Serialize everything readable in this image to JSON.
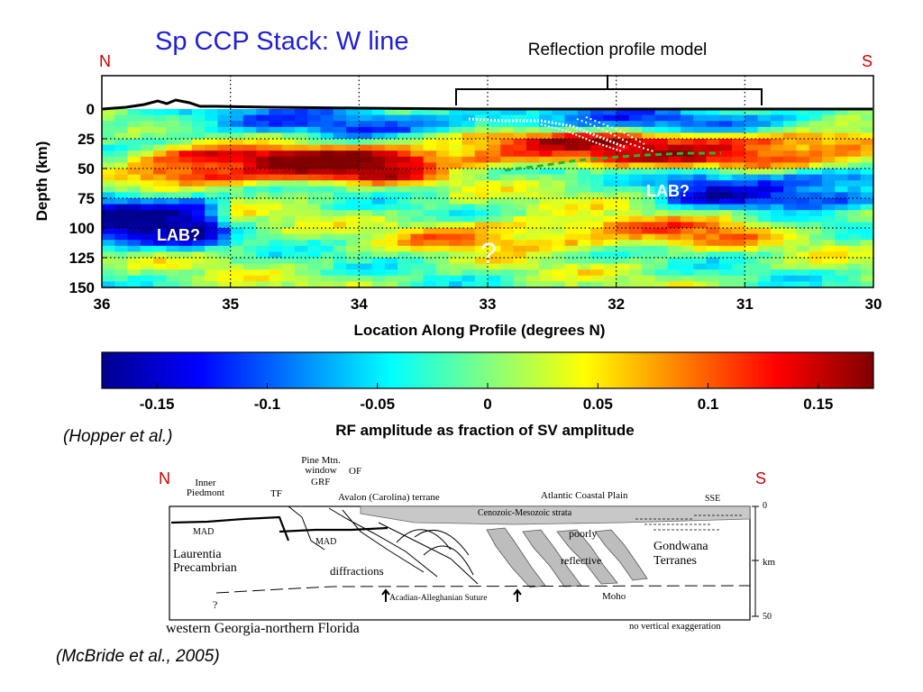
{
  "slide": {
    "title": "Sp CCP Stack: W line",
    "title_color": "#1f1fd6",
    "dir_color": "#d00000"
  },
  "top_figure": {
    "north_label": "N",
    "south_label": "S",
    "bracket_label": "Reflection profile model",
    "annotations": {
      "lab_left": "LAB?",
      "lab_right": "LAB?",
      "question": "?"
    },
    "citation": {
      "open": "(",
      "authors": "Hopper et al.",
      "close": ")"
    }
  },
  "chart_data": [
    {
      "type": "heatmap",
      "title": "",
      "xlabel": "Location Along Profile (degrees N)",
      "ylabel": "Depth (km)",
      "xlim": [
        36,
        30
      ],
      "ylim": [
        0,
        150
      ],
      "xticks": [
        36,
        35,
        34,
        33,
        32,
        31,
        30
      ],
      "yticks": [
        0,
        25,
        50,
        75,
        100,
        125,
        150
      ],
      "vertical_gridlines": [
        35,
        34,
        33,
        32,
        31
      ],
      "horizontal_gridlines": [
        25,
        50,
        75,
        100,
        125
      ],
      "bracket_x_range": [
        33.2,
        30.9
      ],
      "colorbar": {
        "label": "RF amplitude as fraction of SV amplitude",
        "range": [
          -0.175,
          0.175
        ],
        "ticks": [
          -0.15,
          -0.1,
          -0.05,
          0,
          0.05,
          0.1,
          0.15
        ],
        "tick_labels": [
          "-0.15",
          "-0.1",
          "-0.05",
          "0",
          "0.05",
          "0.1",
          "0.15"
        ],
        "colormap": [
          "#00008f",
          "#0000ff",
          "#0080ff",
          "#00ffff",
          "#80ff80",
          "#ffff00",
          "#ff8000",
          "#ff0000",
          "#800000"
        ]
      },
      "features": [
        {
          "name": "shallow negative band",
          "x_range": [
            35.6,
            30.2
          ],
          "depth": [
            2,
            20
          ],
          "amplitude": -0.08
        },
        {
          "name": "strong positive (Moho) band north",
          "x_range": [
            35.6,
            33.6
          ],
          "depth": [
            35,
            60
          ],
          "amplitude": 0.16
        },
        {
          "name": "positive band south",
          "x_range": [
            33.4,
            30.0
          ],
          "depth": [
            20,
            45
          ],
          "amplitude": 0.13
        },
        {
          "name": "deep negative north (LAB)",
          "x_range": [
            36.0,
            35.2
          ],
          "depth": [
            75,
            115
          ],
          "amplitude": -0.15
        },
        {
          "name": "negative band south (LAB)",
          "x_range": [
            31.5,
            30.0
          ],
          "depth": [
            55,
            80
          ],
          "amplitude": -0.12
        },
        {
          "name": "positive band deep",
          "x_range": [
            33.5,
            31.0
          ],
          "depth": [
            95,
            115
          ],
          "amplitude": 0.08
        }
      ]
    }
  ],
  "bottom_figure": {
    "north_label": "N",
    "south_label": "S",
    "labels": {
      "inner_piedmont": "Inner Piedmont",
      "pine_mtn": "Pine Mtn. window",
      "grf": "GRF",
      "of": "OF",
      "tf": "TF",
      "avalon": "Avalon (Carolina) terrane",
      "atlantic": "Atlantic Coastal Plain",
      "sse": "SSE",
      "strata": "Cenozoic-Mesozoic strata",
      "mad_left": "MAD",
      "mad_mid": "MAD",
      "laurentia": "Laurentia Precambrian",
      "diffractions": "diffractions",
      "poorly": "poorly",
      "reflective": "reflective",
      "gondwana": "Gondwana Terranes",
      "suture": "Acadian-Alleghanian Suture",
      "moho": "Moho",
      "question": "?",
      "region": "western Georgia-northern Florida",
      "exaggeration": "no vertical exaggeration",
      "depth_0": "0",
      "depth_unit": "km",
      "depth_50": "50"
    },
    "citation": {
      "open": "(",
      "authors": "McBride et al., 2005",
      "close": ")"
    }
  }
}
